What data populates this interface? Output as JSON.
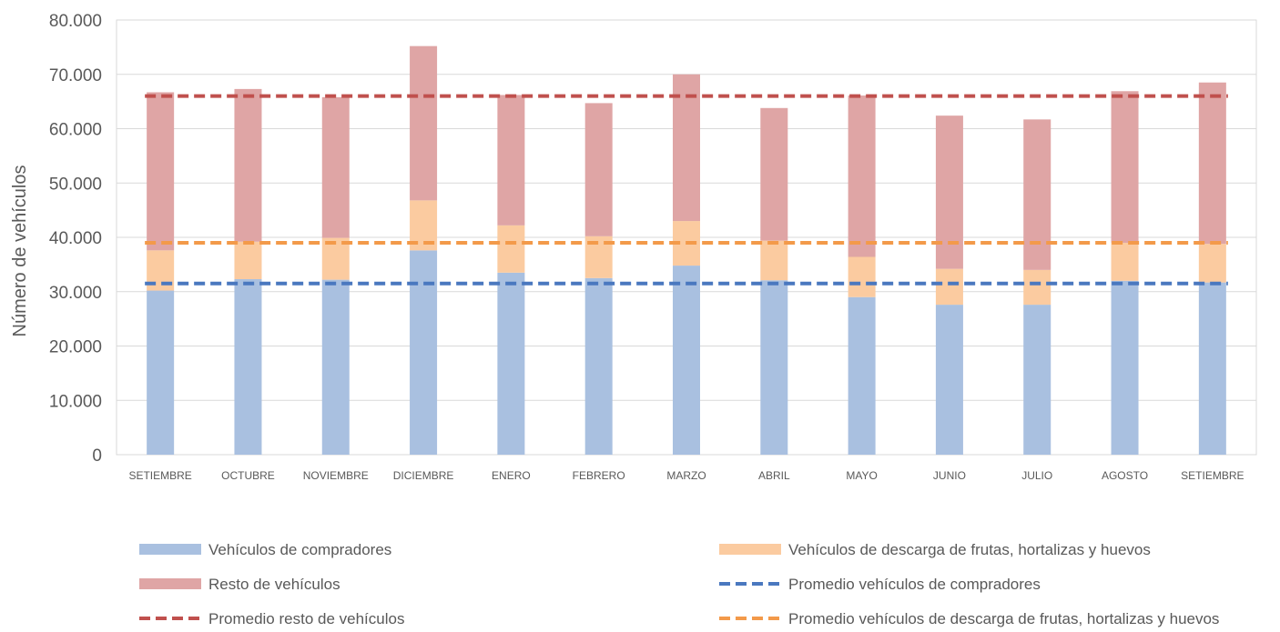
{
  "chart_data": {
    "type": "bar",
    "stacked": true,
    "title": "",
    "xlabel": "",
    "ylabel": "Número de vehículos",
    "ylim": [
      0,
      80000
    ],
    "yticks": [
      0,
      10000,
      20000,
      30000,
      40000,
      50000,
      60000,
      70000,
      80000
    ],
    "ytick_labels": [
      "0",
      "10.000",
      "20.000",
      "30.000",
      "40.000",
      "50.000",
      "60.000",
      "70.000",
      "80.000"
    ],
    "grid": true,
    "legend_position": "bottom",
    "categories": [
      "SETIEMBRE",
      "OCTUBRE",
      "NOVIEMBRE",
      "DICIEMBRE",
      "ENERO",
      "FEBRERO",
      "MARZO",
      "ABRIL",
      "MAYO",
      "JUNIO",
      "JULIO",
      "AGOSTO",
      "SETIEMBRE"
    ],
    "series": [
      {
        "name": "Vehículos de compradores",
        "kind": "bar",
        "color": "#A9C0E0",
        "values": [
          30200,
          32300,
          32200,
          37600,
          33500,
          32500,
          34800,
          32100,
          29000,
          27600,
          27600,
          32000,
          31700
        ]
      },
      {
        "name": "Vehículos de descarga de frutas, hortalizas y huevos",
        "kind": "bar",
        "color": "#FBCBA0",
        "values": [
          7400,
          6900,
          7700,
          9200,
          8700,
          7700,
          8200,
          7300,
          7400,
          6600,
          6400,
          7000,
          7100
        ]
      },
      {
        "name": "Resto de vehículos",
        "kind": "bar",
        "color": "#DFA5A5",
        "values": [
          29100,
          28100,
          25900,
          28400,
          24000,
          24500,
          27000,
          24400,
          29700,
          28200,
          27700,
          27900,
          29700
        ]
      },
      {
        "name": "Promedio vehículos de compradores",
        "kind": "line",
        "dash": true,
        "color": "#4A78BF",
        "value": 31500
      },
      {
        "name": "Promedio resto de vehículos",
        "kind": "line",
        "dash": true,
        "color": "#C0504D",
        "value": 66000
      },
      {
        "name": "Promedio vehículos de descarga de frutas, hortalizas y huevos",
        "kind": "line",
        "dash": true,
        "color": "#F39A4A",
        "value": 39000
      }
    ],
    "legend_order": [
      "Vehículos de compradores",
      "Vehículos de descarga de frutas, hortalizas y huevos",
      "Resto de vehículos",
      "Promedio vehículos de compradores",
      "Promedio resto de vehículos",
      "Promedio vehículos de descarga de frutas, hortalizas y huevos"
    ]
  }
}
